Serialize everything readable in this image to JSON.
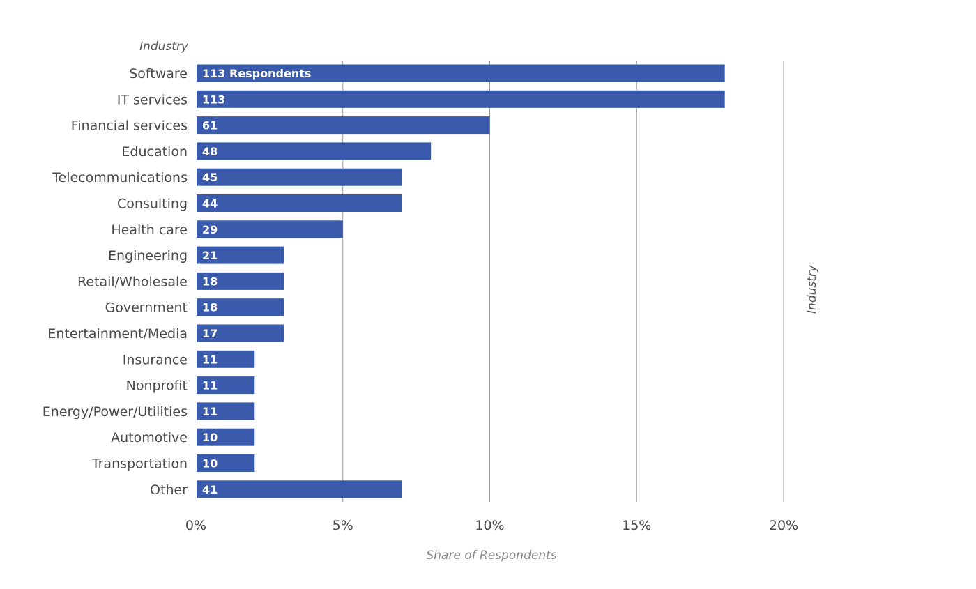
{
  "chart_data": {
    "type": "bar",
    "orientation": "horizontal",
    "ylabel": "Industry",
    "xlabel": "Share of Respondents",
    "right_label": "Industry",
    "xlim": [
      0,
      20
    ],
    "x_ticks": [
      0,
      5,
      10,
      15,
      20
    ],
    "x_tick_labels": [
      "0%",
      "5%",
      "10%",
      "15%",
      "20%"
    ],
    "grid": true,
    "bar_color": "#3a5bab",
    "categories": [
      "Software",
      "IT services",
      "Financial services",
      "Education",
      "Telecommunications",
      "Consulting",
      "Health care",
      "Engineering",
      "Retail/Wholesale",
      "Government",
      "Entertainment/Media",
      "Insurance",
      "Nonprofit",
      "Energy/Power/Utilities",
      "Automotive",
      "Transportation",
      "Other"
    ],
    "values": [
      18,
      18,
      10,
      8,
      7,
      7,
      5,
      3,
      3,
      3,
      3,
      2,
      2,
      2,
      2,
      2,
      7
    ],
    "data_labels": [
      "113 Respondents",
      "113",
      "61",
      "48",
      "45",
      "44",
      "29",
      "21",
      "18",
      "18",
      "17",
      "11",
      "11",
      "11",
      "10",
      "10",
      "41"
    ]
  }
}
